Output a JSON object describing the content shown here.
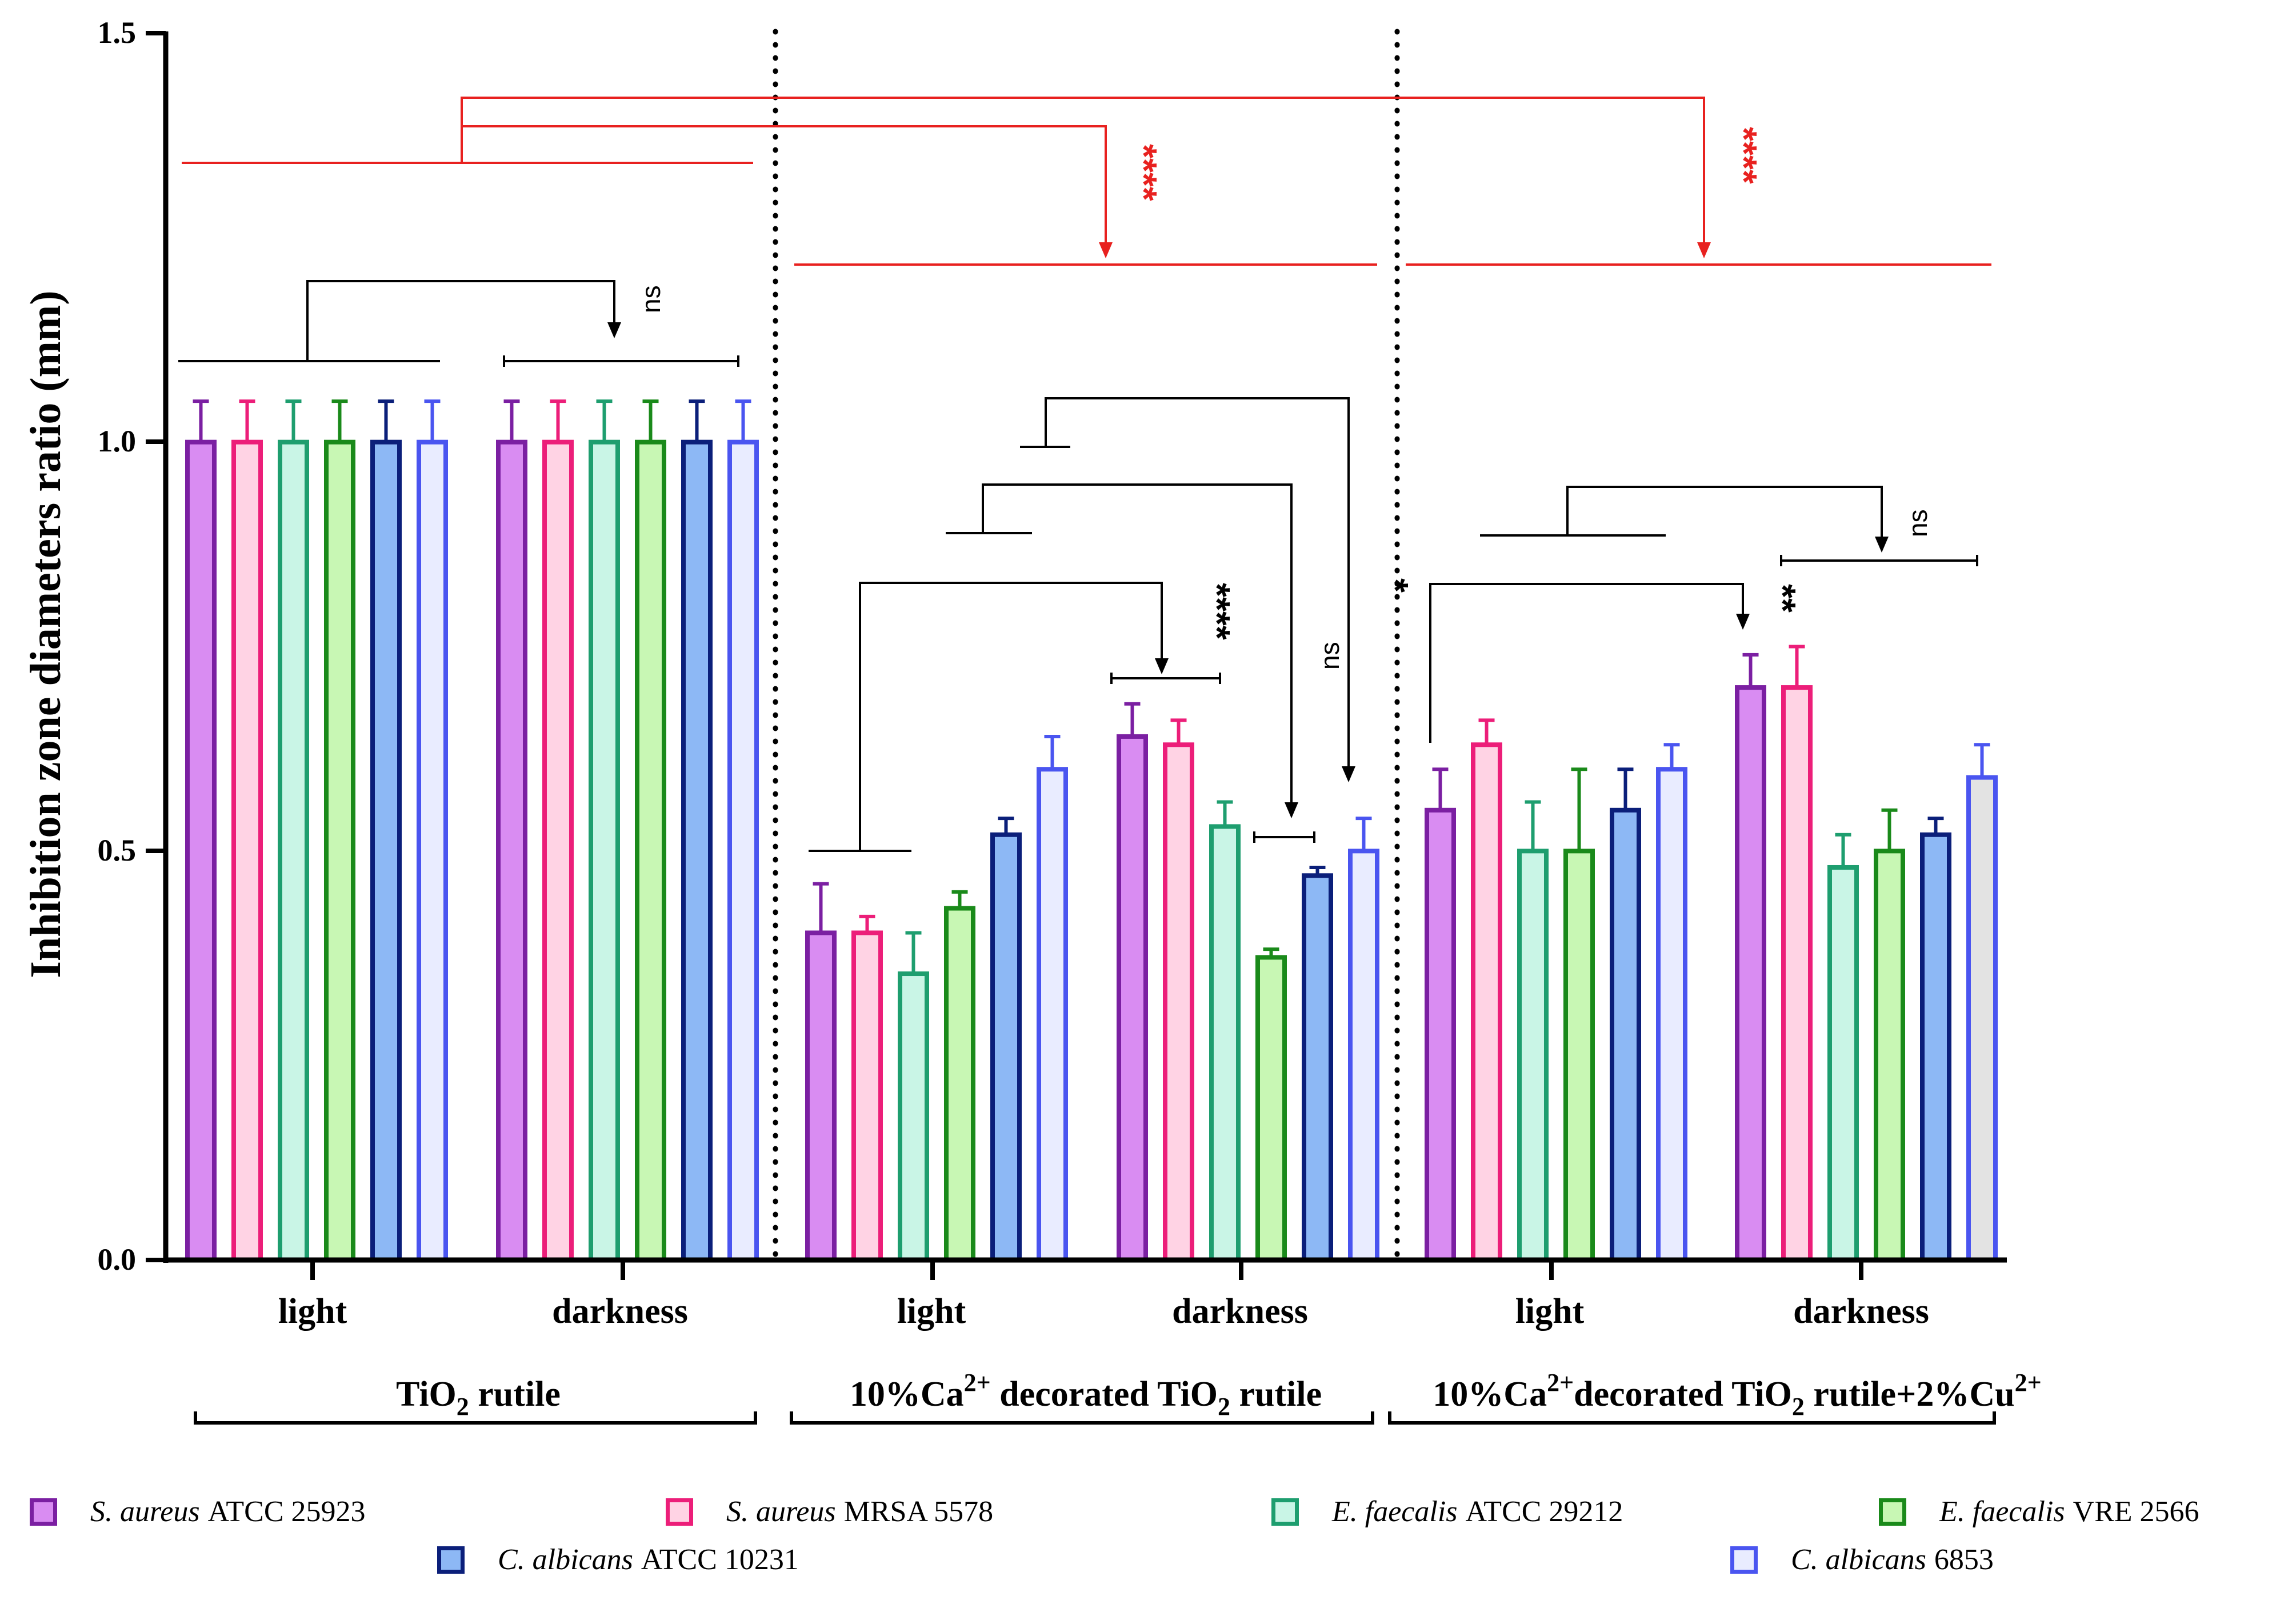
{
  "chart_data": {
    "type": "bar",
    "ylabel": "Inhibition zone diameters ratio (mm)",
    "ylim": [
      0,
      1.5
    ],
    "yticks": [
      "0.0",
      "0.5",
      "1.0",
      "1.5"
    ],
    "groups": [
      {
        "label": "light",
        "material": "TiO2 rutile",
        "values": [
          1.0,
          1.0,
          1.0,
          1.0,
          1.0,
          1.0
        ],
        "errors": [
          0.05,
          0.05,
          0.05,
          0.05,
          0.05,
          0.05
        ]
      },
      {
        "label": "darkness",
        "material": "TiO2 rutile",
        "values": [
          1.0,
          1.0,
          1.0,
          1.0,
          1.0,
          1.0
        ],
        "errors": [
          0.05,
          0.05,
          0.05,
          0.05,
          0.05,
          0.05
        ]
      },
      {
        "label": "light",
        "material": "10%Ca2+ decorated TiO2 rutile",
        "values": [
          0.4,
          0.4,
          0.35,
          0.43,
          0.52,
          0.6
        ],
        "errors": [
          0.06,
          0.02,
          0.05,
          0.02,
          0.02,
          0.04
        ]
      },
      {
        "label": "darkness",
        "material": "10%Ca2+ decorated TiO2 rutile",
        "values": [
          0.64,
          0.63,
          0.53,
          0.37,
          0.47,
          0.5
        ],
        "errors": [
          0.04,
          0.03,
          0.03,
          0.01,
          0.01,
          0.04
        ]
      },
      {
        "label": "light",
        "material": "10%Ca2+decorated TiO2 rutile+2%Cu2+",
        "values": [
          0.55,
          0.63,
          0.5,
          0.5,
          0.55,
          0.6
        ],
        "errors": [
          0.05,
          0.03,
          0.06,
          0.1,
          0.05,
          0.03
        ]
      },
      {
        "label": "darkness",
        "material": "10%Ca2+decorated TiO2 rutile+2%Cu2+",
        "values": [
          0.7,
          0.7,
          0.48,
          0.5,
          0.52,
          0.59
        ],
        "errors": [
          0.04,
          0.05,
          0.04,
          0.05,
          0.02,
          0.04
        ]
      }
    ],
    "series": [
      {
        "species": "S. aureus",
        "strain": "ATCC 25923",
        "edge": "#7B1FA2",
        "fill": "#D98CF2"
      },
      {
        "species": "S. aureus",
        "strain": "MRSA 5578",
        "edge": "#EC1E79",
        "fill": "#FFD3E4"
      },
      {
        "species": "E. faecalis",
        "strain": "ATCC 29212",
        "edge": "#1E9E6F",
        "fill": "#C9F5E6"
      },
      {
        "species": "E. faecalis",
        "strain": "VRE 2566",
        "edge": "#1A8A1A",
        "fill": "#C8F7B4"
      },
      {
        "species": "C. albicans",
        "strain": "ATCC 10231",
        "edge": "#0B1F7A",
        "fill": "#8DB8F5"
      },
      {
        "species": "C. albicans",
        "strain": "6853",
        "edge": "#4A55F0",
        "fill": "#E9ECFF"
      }
    ],
    "last_bar_fill": "#E3E3E3",
    "materials": [
      {
        "main": "TiO",
        "sub": "2",
        "rest": " rutile"
      },
      {
        "pre": "10%Ca",
        "sup": "2+",
        "mid": " decorated TiO",
        "sub": "2",
        "rest": " rutile"
      },
      {
        "pre": "10%Ca",
        "sup": "2+",
        "mid": "decorated TiO",
        "sub": "2",
        "rest": " rutile+2%Cu",
        "sup2": "2+"
      }
    ],
    "annotations": {
      "ns": "ns",
      "four_star": "****",
      "two_star": "**",
      "one_star": "*",
      "significance_color": "#E8211F"
    }
  }
}
